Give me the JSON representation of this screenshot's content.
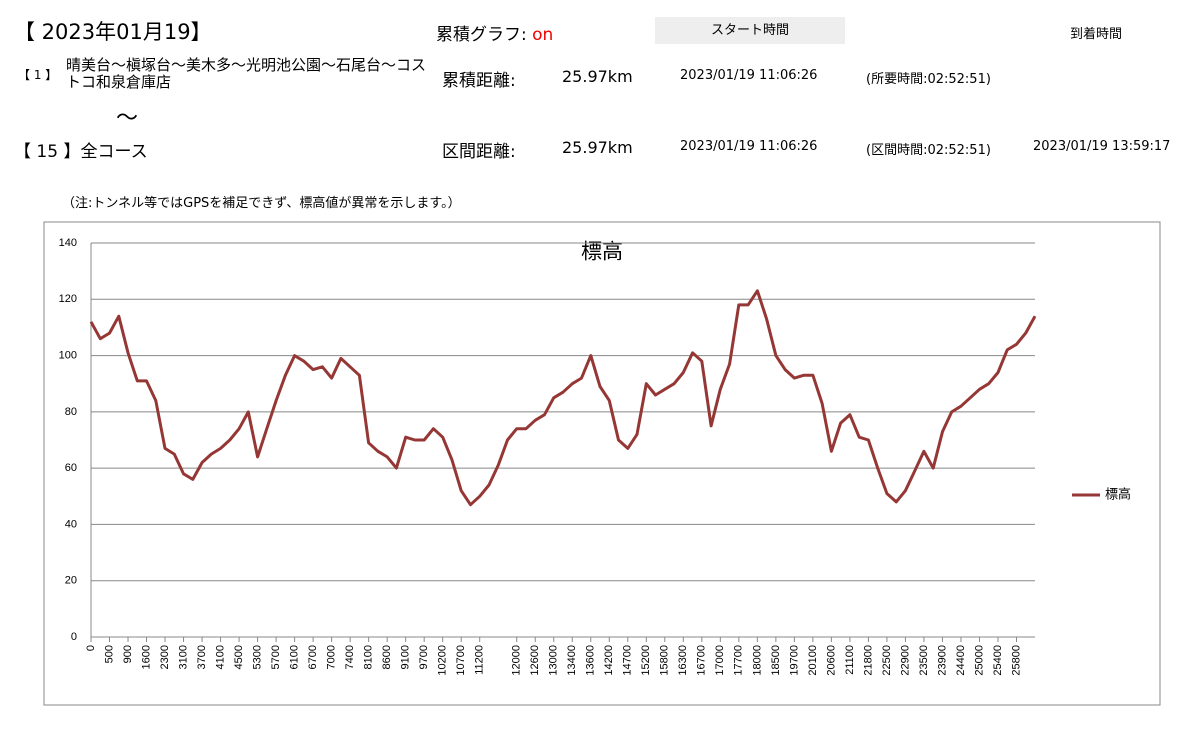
{
  "header": {
    "date_title": "【 2023年01月19】",
    "route_start_no": "【 1 】",
    "route_start": "晴美台～槇塚台～美木多～光明池公園～石尾台～コストコ和泉倉庫店",
    "tilde": "～",
    "route_end": "【 15 】全コース",
    "cumulative_graph_label": "累積グラフ:",
    "cumulative_graph_value": "on",
    "start_time_header": "スタート時間",
    "arrival_time_header": "到着時間"
  },
  "rows": [
    {
      "label": "累積距離:",
      "distance": "25.97km",
      "start": "2023/01/19 11:06:26",
      "duration": "(所要時間:02:52:51)"
    },
    {
      "label": "区間距離:",
      "distance": "25.97km",
      "start": "2023/01/19 11:06:26",
      "duration": "(区間時間:02:52:51)",
      "arrival": "2023/01/19 13:59:17"
    }
  ],
  "note": "（注:トンネル等ではGPSを補足できず、標高値が異常を示します。）",
  "chart_data": {
    "type": "line",
    "title": "標高",
    "categories": [
      0,
      null,
      500,
      null,
      900,
      null,
      1600,
      null,
      2300,
      null,
      3100,
      null,
      3700,
      null,
      4100,
      null,
      4500,
      null,
      5300,
      null,
      5700,
      null,
      6100,
      null,
      6700,
      null,
      7000,
      null,
      7400,
      null,
      8100,
      null,
      8600,
      null,
      9100,
      null,
      9700,
      null,
      10200,
      null,
      10700,
      null,
      11200,
      null,
      null,
      null,
      12000,
      null,
      12600,
      null,
      13000,
      null,
      13400,
      null,
      13600,
      null,
      14200,
      null,
      14700,
      null,
      15200,
      null,
      15800,
      null,
      16300,
      null,
      16700,
      null,
      17000,
      null,
      17700,
      null,
      18000,
      null,
      18500,
      null,
      19700,
      null,
      20100,
      null,
      20600,
      null,
      21100,
      null,
      21800,
      null,
      22500,
      null,
      22900,
      null,
      23500,
      null,
      23900,
      null,
      24400,
      null,
      25000,
      null,
      25400,
      null,
      25800,
      null,
      null
    ],
    "series": [
      {
        "name": "標高",
        "color": "#953735",
        "values": [
          112,
          106,
          108,
          114,
          101,
          91,
          91,
          84,
          67,
          65,
          58,
          56,
          62,
          65,
          67,
          70,
          74,
          80,
          64,
          74,
          84,
          93,
          100,
          98,
          95,
          96,
          92,
          99,
          96,
          93,
          69,
          66,
          64,
          60,
          71,
          70,
          70,
          74,
          71,
          63,
          52,
          47,
          50,
          54,
          61,
          70,
          74,
          74,
          77,
          79,
          85,
          87,
          90,
          92,
          100,
          89,
          84,
          70,
          67,
          72,
          90,
          86,
          88,
          90,
          94,
          101,
          98,
          75,
          88,
          97,
          118,
          118,
          123,
          113,
          100,
          95,
          92,
          93,
          93,
          83,
          66,
          76,
          79,
          71,
          70,
          60,
          51,
          48,
          52,
          59,
          66,
          60,
          73,
          80,
          82,
          85,
          88,
          90,
          94,
          102,
          104,
          108,
          114
        ]
      }
    ],
    "ylim": [
      0,
      140
    ],
    "yticks": [
      0,
      20,
      40,
      60,
      80,
      100,
      120,
      140
    ],
    "grid": true,
    "legend": "right"
  }
}
